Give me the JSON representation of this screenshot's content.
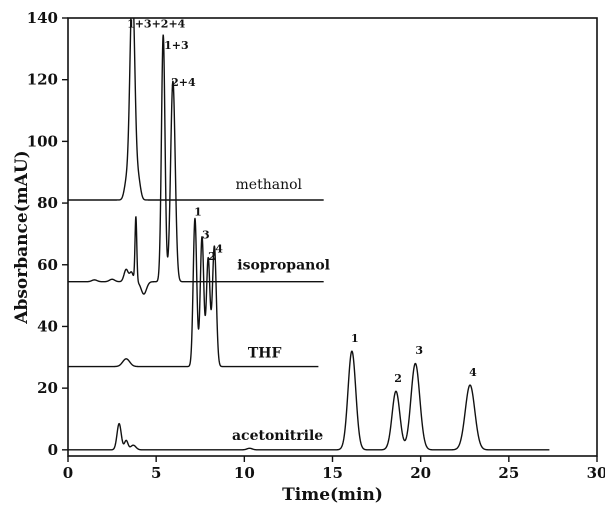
{
  "chart_data": {
    "type": "line",
    "xlabel": "Time(min)",
    "ylabel": "Absorbance(mAU)",
    "xlim": [
      0,
      30
    ],
    "ylim": [
      -2,
      140
    ],
    "xticks": [
      "0",
      "5",
      "10",
      "15",
      "20",
      "25",
      "30"
    ],
    "yticks": [
      "0",
      "20",
      "40",
      "60",
      "80",
      "100",
      "120",
      "140"
    ],
    "grid": false,
    "series": [
      {
        "name": "methanol",
        "baseline": 81,
        "label_at": [
          9.5,
          84.5
        ],
        "bold": false,
        "line_end": 14.5,
        "peaks": [
          [
            3.3,
            5,
            0.12
          ],
          [
            3.65,
            70,
            0.14
          ],
          [
            4.0,
            6,
            0.12
          ]
        ],
        "peak_labels": []
      },
      {
        "name": "isopropanol",
        "baseline": 54.5,
        "label_at": [
          9.6,
          58.5
        ],
        "bold": true,
        "line_end": 14.5,
        "peaks": [
          [
            1.5,
            0.6,
            0.15
          ],
          [
            2.5,
            0.8,
            0.15
          ],
          [
            3.3,
            4,
            0.12
          ],
          [
            3.6,
            3,
            0.1
          ],
          [
            3.85,
            21,
            0.05
          ],
          [
            4.3,
            -4,
            0.15
          ],
          [
            5.4,
            80,
            0.1
          ],
          [
            5.95,
            65,
            0.13
          ]
        ],
        "peak_labels": [
          {
            "text": "1+3+2+4",
            "x": 3.35,
            "y": 137
          },
          {
            "text": "1+3",
            "x": 5.45,
            "y": 130
          },
          {
            "text": "2+4",
            "x": 5.85,
            "y": 118
          }
        ]
      },
      {
        "name": "THF",
        "baseline": 27,
        "label_at": [
          10.2,
          30
        ],
        "bold": true,
        "line_end": 14.2,
        "peaks": [
          [
            3.3,
            2.5,
            0.2
          ],
          [
            7.2,
            48,
            0.1
          ],
          [
            7.6,
            42,
            0.1
          ],
          [
            7.95,
            35,
            0.1
          ],
          [
            8.3,
            39,
            0.11
          ]
        ],
        "peak_labels": [
          {
            "text": "1",
            "x": 7.15,
            "y": 76
          },
          {
            "text": "3",
            "x": 7.6,
            "y": 68.5
          },
          {
            "text": "2",
            "x": 7.95,
            "y": 61.5
          },
          {
            "text": "4",
            "x": 8.35,
            "y": 64
          }
        ]
      },
      {
        "name": "acetonitrile",
        "baseline": 0,
        "label_at": [
          9.3,
          3.2
        ],
        "bold": true,
        "line_end": 27.3,
        "peaks": [
          [
            2.9,
            8.5,
            0.12
          ],
          [
            3.3,
            3,
            0.1
          ],
          [
            3.7,
            1.5,
            0.15
          ],
          [
            10.3,
            0.5,
            0.15
          ],
          [
            16.1,
            32,
            0.22
          ],
          [
            18.6,
            19,
            0.22
          ],
          [
            19.7,
            28,
            0.25
          ],
          [
            22.8,
            21,
            0.27
          ]
        ],
        "peak_labels": [
          {
            "text": "1",
            "x": 16.05,
            "y": 35
          },
          {
            "text": "2",
            "x": 18.5,
            "y": 22
          },
          {
            "text": "3",
            "x": 19.7,
            "y": 31
          },
          {
            "text": "4",
            "x": 22.75,
            "y": 24
          }
        ]
      }
    ]
  }
}
